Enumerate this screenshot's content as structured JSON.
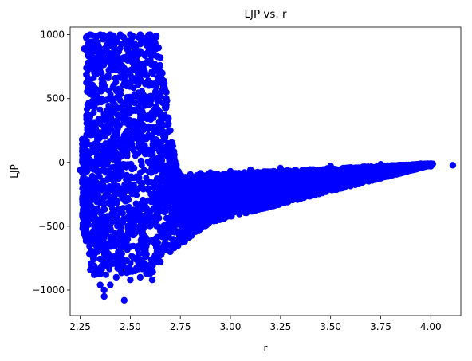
{
  "chart_data": {
    "type": "scatter",
    "title": "LJP vs. r",
    "xlabel": "r",
    "ylabel": "LJP",
    "xlim": [
      2.2,
      4.15
    ],
    "ylim": [
      -1200,
      1060
    ],
    "xticks": [
      2.25,
      2.5,
      2.75,
      3.0,
      3.25,
      3.5,
      3.75,
      4.0
    ],
    "xtick_labels": [
      "2.25",
      "2.50",
      "2.75",
      "3.00",
      "3.25",
      "3.50",
      "3.75",
      "4.00"
    ],
    "yticks": [
      -1000,
      -500,
      0,
      500,
      1000
    ],
    "ytick_labels": [
      "−1000",
      "−500",
      "0",
      "500",
      "1000"
    ],
    "grid": false,
    "marker_color": "#0000ff",
    "series": [
      {
        "points": [
          [
            2.27,
            890
          ],
          [
            2.28,
            980
          ],
          [
            2.3,
            1000
          ],
          [
            2.35,
            1000
          ],
          [
            2.4,
            1000
          ],
          [
            2.45,
            1000
          ],
          [
            2.5,
            1000
          ],
          [
            2.55,
            1000
          ],
          [
            2.6,
            1000
          ],
          [
            2.63,
            990
          ],
          [
            2.64,
            900
          ],
          [
            2.65,
            820
          ],
          [
            2.66,
            700
          ],
          [
            2.67,
            620
          ],
          [
            2.68,
            550
          ],
          [
            2.68,
            450
          ],
          [
            2.69,
            350
          ],
          [
            2.7,
            250
          ],
          [
            2.71,
            150
          ],
          [
            2.72,
            60
          ],
          [
            2.73,
            -20
          ],
          [
            2.74,
            -70
          ],
          [
            2.75,
            -100
          ],
          [
            2.8,
            -95
          ],
          [
            2.85,
            -85
          ],
          [
            2.9,
            -80
          ],
          [
            3.0,
            -70
          ],
          [
            3.1,
            -58
          ],
          [
            3.25,
            -45
          ],
          [
            3.5,
            -28
          ],
          [
            3.75,
            -15
          ],
          [
            3.95,
            -10
          ],
          [
            4.01,
            -12
          ],
          [
            4.11,
            -22
          ],
          [
            2.26,
            180
          ],
          [
            2.25,
            -60
          ],
          [
            2.27,
            -300
          ],
          [
            2.28,
            -450
          ],
          [
            2.3,
            -580
          ],
          [
            2.3,
            -720
          ],
          [
            2.31,
            -830
          ],
          [
            2.32,
            -880
          ],
          [
            2.35,
            -960
          ],
          [
            2.37,
            -1000
          ],
          [
            2.37,
            -1050
          ],
          [
            2.4,
            -960
          ],
          [
            2.43,
            -900
          ],
          [
            2.47,
            -1080
          ],
          [
            2.5,
            -920
          ],
          [
            2.55,
            -900
          ],
          [
            2.58,
            -870
          ],
          [
            2.61,
            -920
          ],
          [
            2.65,
            -780
          ],
          [
            2.7,
            -700
          ],
          [
            2.75,
            -600
          ],
          [
            2.8,
            -540
          ],
          [
            2.85,
            -500
          ],
          [
            2.9,
            -460
          ],
          [
            2.95,
            -420
          ],
          [
            3.02,
            -380
          ],
          [
            3.1,
            -310
          ],
          [
            3.2,
            -260
          ],
          [
            3.3,
            -200
          ],
          [
            3.4,
            -160
          ],
          [
            3.5,
            -120
          ],
          [
            3.6,
            -95
          ],
          [
            3.7,
            -70
          ],
          [
            3.8,
            -50
          ],
          [
            3.9,
            -40
          ],
          [
            4.0,
            -30
          ]
        ]
      }
    ]
  }
}
